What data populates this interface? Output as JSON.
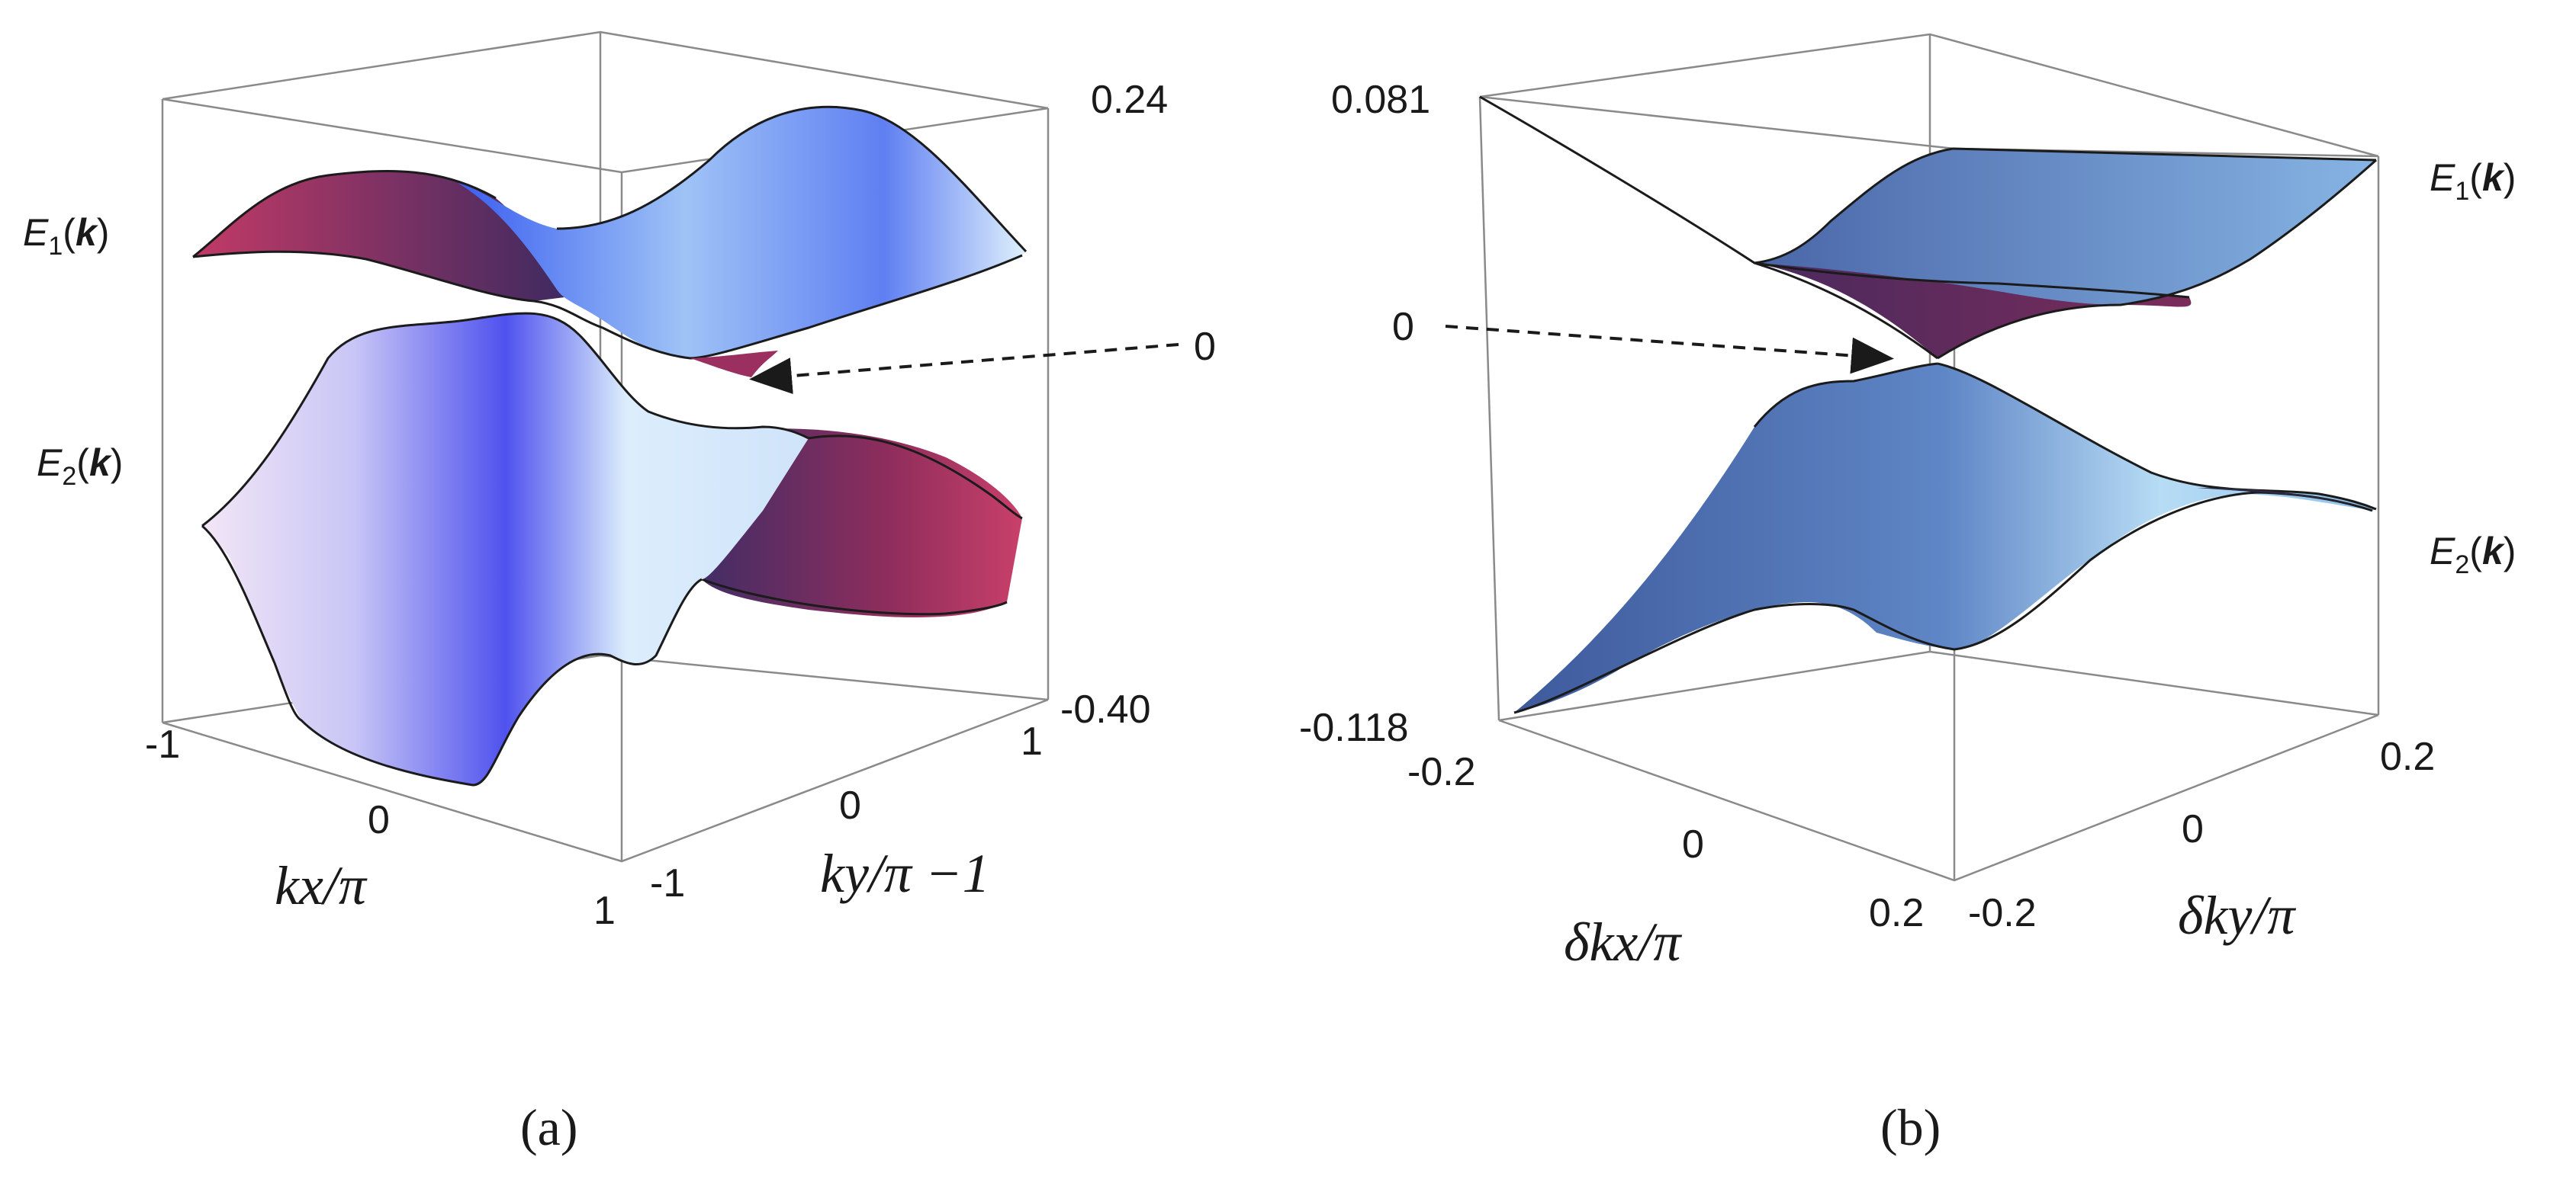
{
  "chart_data": [
    {
      "panel": "(a)",
      "type": "3d-surface",
      "title": "",
      "x_label": "kx/π",
      "y_label": "ky/π −1",
      "x_ticks": [
        "-1",
        "0",
        "1"
      ],
      "y_ticks": [
        "-1",
        "0",
        "1"
      ],
      "x_range": [
        -1,
        1
      ],
      "y_range": [
        -1,
        1
      ],
      "z_range": [
        -0.4,
        0.24
      ],
      "z_ticks": [
        "0.24",
        "-0.40"
      ],
      "annotation": {
        "label": "0",
        "meaning": "band touching point at energy 0"
      },
      "series": [
        {
          "name": "E1(k)",
          "sub": "1",
          "position": "upper band"
        },
        {
          "name": "E2(k)",
          "sub": "2",
          "position": "lower band"
        }
      ]
    },
    {
      "panel": "(b)",
      "type": "3d-surface",
      "title": "",
      "x_label": "δkx/π",
      "y_label": "δky/π",
      "x_ticks": [
        "-0.2",
        "0",
        "0.2"
      ],
      "y_ticks": [
        "-0.2",
        "0",
        "0.2"
      ],
      "x_range": [
        -0.2,
        0.2
      ],
      "y_range": [
        -0.2,
        0.2
      ],
      "z_range": [
        -0.118,
        0.081
      ],
      "z_ticks": [
        "0.081",
        "-0.118"
      ],
      "annotation": {
        "label": "0",
        "meaning": "Dirac cone touching point at energy 0"
      },
      "series": [
        {
          "name": "E1(k)",
          "sub": "1",
          "position": "upper cone"
        },
        {
          "name": "E2(k)",
          "sub": "2",
          "position": "lower cone"
        }
      ]
    }
  ],
  "panel_labels": [
    "(a)",
    "(b)"
  ],
  "colors": {
    "surface_light": "#e8f2fc",
    "surface_blue": "#4a5cf0",
    "surface_magenta": "#a8305a",
    "surface_b_dark": "#3f5a9a",
    "surface_b_light": "#bcdff6"
  }
}
